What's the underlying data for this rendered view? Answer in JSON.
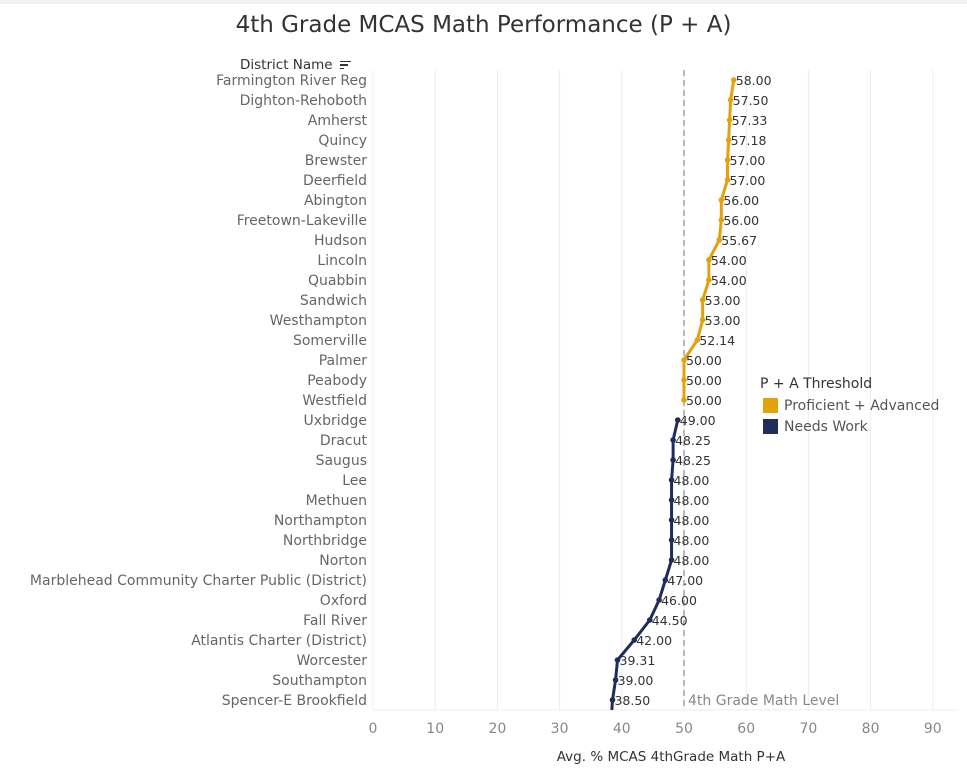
{
  "chart_data": {
    "type": "line",
    "title": "4th Grade MCAS Math Performance (P + A)",
    "row_header": "District Name",
    "xlabel": "Avg. % MCAS 4thGrade Math P+A",
    "ylabel": "District Name",
    "xlim": [
      0,
      94
    ],
    "x_ticks": [
      0,
      10,
      20,
      30,
      40,
      50,
      60,
      70,
      80,
      90
    ],
    "grid": true,
    "orientation": "horizontal-rows",
    "reference_line": {
      "value": 50,
      "label": "4th Grade Math Level",
      "style": "dashed"
    },
    "legend": {
      "title": "P + A Threshold",
      "position": "right",
      "entries": [
        {
          "name": "Proficient + Advanced",
          "color": "#e4a20a"
        },
        {
          "name": "Needs Work",
          "color": "#1f2d5a"
        }
      ]
    },
    "categories": [
      "Farmington River Reg",
      "Dighton-Rehoboth",
      "Amherst",
      "Quincy",
      "Brewster",
      "Deerfield",
      "Abington",
      "Freetown-Lakeville",
      "Hudson",
      "Lincoln",
      "Quabbin",
      "Sandwich",
      "Westhampton",
      "Somerville",
      "Palmer",
      "Peabody",
      "Westfield",
      "Uxbridge",
      "Dracut",
      "Saugus",
      "Lee",
      "Methuen",
      "Northampton",
      "Northbridge",
      "Norton",
      "Marblehead Community Charter Public (District)",
      "Oxford",
      "Fall River",
      "Atlantis Charter (District)",
      "Worcester",
      "Southampton",
      "Spencer-E Brookfield"
    ],
    "values": [
      58.0,
      57.5,
      57.33,
      57.18,
      57.0,
      57.0,
      56.0,
      56.0,
      55.67,
      54.0,
      54.0,
      53.0,
      53.0,
      52.14,
      50.0,
      50.0,
      50.0,
      49.0,
      48.25,
      48.25,
      48.0,
      48.0,
      48.0,
      48.0,
      48.0,
      47.0,
      46.0,
      44.5,
      42.0,
      39.31,
      39.0,
      38.5
    ],
    "labels": [
      "58.00",
      "57.50",
      "57.33",
      "57.18",
      "57.00",
      "57.00",
      "56.00",
      "56.00",
      "55.67",
      "54.00",
      "54.00",
      "53.00",
      "53.00",
      "52.14",
      "50.00",
      "50.00",
      "50.00",
      "49.00",
      "48.25",
      "48.25",
      "48.00",
      "48.00",
      "48.00",
      "48.00",
      "48.00",
      "47.00",
      "46.00",
      "44.50",
      "42.00",
      "39.31",
      "39.00",
      "38.50"
    ],
    "series": [
      {
        "name": "Proficient + Advanced",
        "color": "#e4a20a",
        "range": [
          0,
          16
        ]
      },
      {
        "name": "Needs Work",
        "color": "#1f2d5a",
        "range": [
          17,
          31
        ]
      }
    ]
  }
}
